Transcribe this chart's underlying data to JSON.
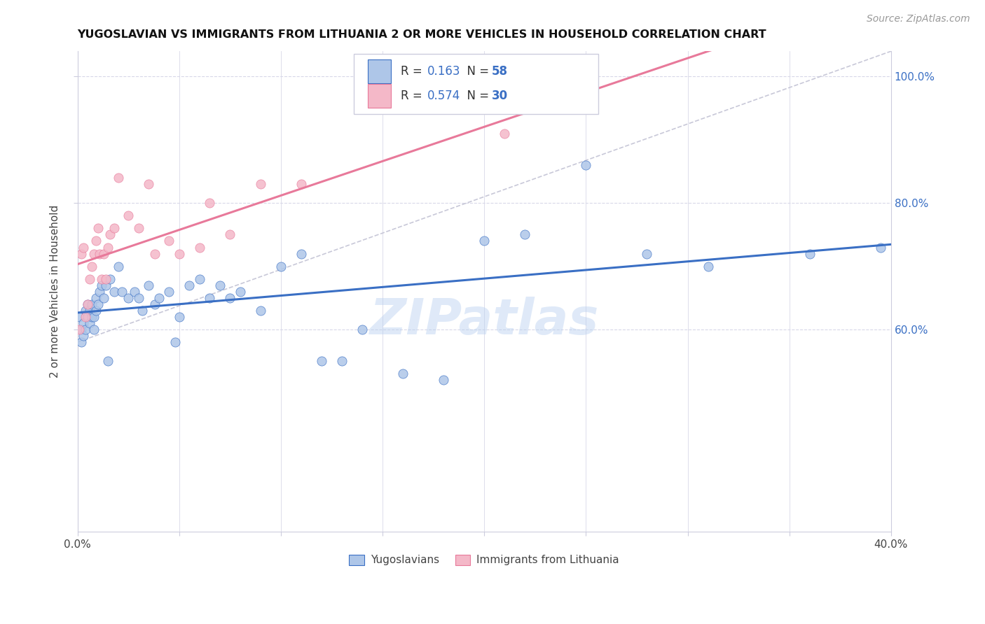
{
  "title": "YUGOSLAVIAN VS IMMIGRANTS FROM LITHUANIA 2 OR MORE VEHICLES IN HOUSEHOLD CORRELATION CHART",
  "source": "Source: ZipAtlas.com",
  "ylabel": "2 or more Vehicles in Household",
  "xmin": 0.0,
  "xmax": 0.4,
  "ymin": 0.28,
  "ymax": 1.04,
  "blue_color": "#aec6e8",
  "pink_color": "#f4b8c8",
  "blue_line_color": "#3a6fc4",
  "pink_line_color": "#e8799a",
  "dashed_line_color": "#c8c8d8",
  "grid_color": "#d8d8e8",
  "watermark": "ZIPatlas",
  "yugoslavians_x": [
    0.001,
    0.002,
    0.002,
    0.003,
    0.003,
    0.004,
    0.004,
    0.005,
    0.005,
    0.006,
    0.006,
    0.007,
    0.007,
    0.008,
    0.008,
    0.009,
    0.009,
    0.01,
    0.011,
    0.012,
    0.013,
    0.014,
    0.016,
    0.018,
    0.02,
    0.022,
    0.025,
    0.028,
    0.03,
    0.032,
    0.035,
    0.038,
    0.04,
    0.045,
    0.048,
    0.05,
    0.055,
    0.06,
    0.065,
    0.07,
    0.075,
    0.08,
    0.09,
    0.1,
    0.11,
    0.12,
    0.13,
    0.14,
    0.16,
    0.18,
    0.2,
    0.22,
    0.25,
    0.28,
    0.31,
    0.36,
    0.395,
    0.015
  ],
  "yugoslavians_y": [
    0.62,
    0.6,
    0.58,
    0.61,
    0.59,
    0.63,
    0.6,
    0.62,
    0.64,
    0.61,
    0.63,
    0.62,
    0.64,
    0.6,
    0.62,
    0.65,
    0.63,
    0.64,
    0.66,
    0.67,
    0.65,
    0.67,
    0.68,
    0.66,
    0.7,
    0.66,
    0.65,
    0.66,
    0.65,
    0.63,
    0.67,
    0.64,
    0.65,
    0.66,
    0.58,
    0.62,
    0.67,
    0.68,
    0.65,
    0.67,
    0.65,
    0.66,
    0.63,
    0.7,
    0.72,
    0.55,
    0.55,
    0.6,
    0.53,
    0.52,
    0.74,
    0.75,
    0.86,
    0.72,
    0.7,
    0.72,
    0.73,
    0.55
  ],
  "lithuania_x": [
    0.001,
    0.002,
    0.003,
    0.004,
    0.005,
    0.006,
    0.007,
    0.008,
    0.009,
    0.01,
    0.011,
    0.012,
    0.013,
    0.014,
    0.015,
    0.016,
    0.018,
    0.02,
    0.025,
    0.03,
    0.035,
    0.038,
    0.045,
    0.05,
    0.06,
    0.065,
    0.075,
    0.09,
    0.11,
    0.21
  ],
  "lithuania_y": [
    0.6,
    0.72,
    0.73,
    0.62,
    0.64,
    0.68,
    0.7,
    0.72,
    0.74,
    0.76,
    0.72,
    0.68,
    0.72,
    0.68,
    0.73,
    0.75,
    0.76,
    0.84,
    0.78,
    0.76,
    0.83,
    0.72,
    0.74,
    0.72,
    0.73,
    0.8,
    0.75,
    0.83,
    0.83,
    0.91
  ]
}
